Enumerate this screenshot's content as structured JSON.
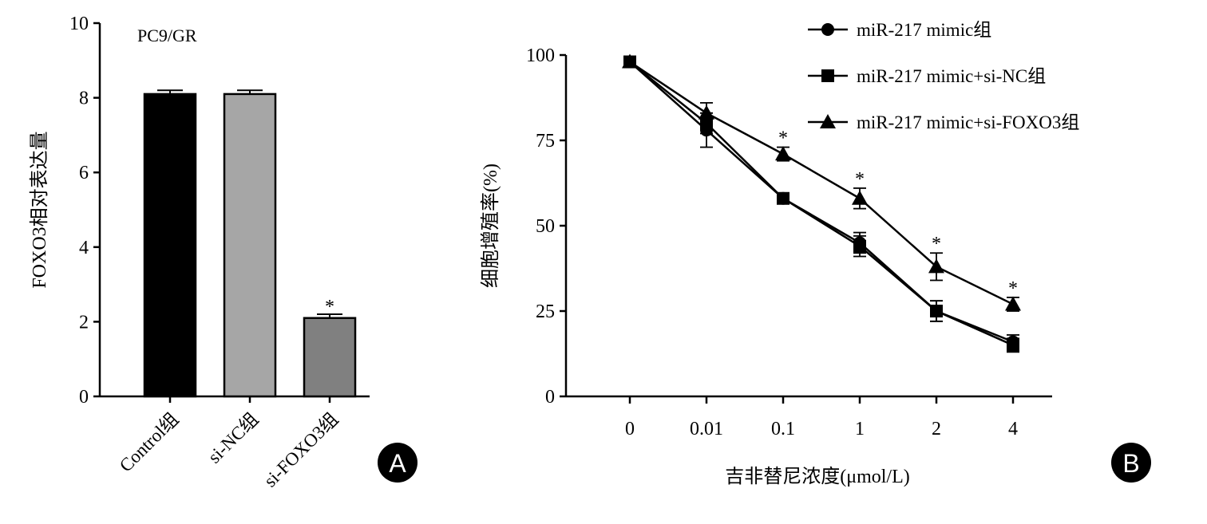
{
  "chart_data": [
    {
      "type": "bar",
      "panel_label": "A",
      "annotation": "PC9/GR",
      "ylabel": "FOXO3相对表达量",
      "ylim": [
        0,
        10
      ],
      "yticks": [
        "0",
        "2",
        "4",
        "6",
        "8",
        "10"
      ],
      "categories": [
        "Control组",
        "si-NC组",
        "si-FOXO3组"
      ],
      "values": [
        8.1,
        8.1,
        2.1
      ],
      "errors": [
        0.1,
        0.1,
        0.1
      ],
      "significance": [
        "",
        "",
        "*"
      ],
      "colors": [
        "#000000",
        "#a6a6a6",
        "#808080"
      ]
    },
    {
      "type": "line",
      "panel_label": "B",
      "xlabel": "吉非替尼浓度(μmol/L)",
      "ylabel": "细胞增殖率(%)",
      "ylim": [
        0,
        100
      ],
      "yticks": [
        "0",
        "25",
        "50",
        "75",
        "100"
      ],
      "x": [
        "0",
        "0.01",
        "0.1",
        "1",
        "2",
        "4"
      ],
      "legend_position": "top-right",
      "series": [
        {
          "name": "miR-217 mimic组",
          "marker": "circle",
          "values": [
            98,
            78,
            58,
            45,
            25,
            16
          ],
          "errors": [
            1.5,
            5,
            1.5,
            3,
            3,
            2
          ]
        },
        {
          "name": "miR-217 mimic+si-NC组",
          "marker": "square",
          "values": [
            98,
            80,
            58,
            44,
            25,
            15
          ],
          "errors": [
            1.5,
            3,
            1.5,
            3,
            3,
            2
          ]
        },
        {
          "name": "miR-217 mimic+si-FOXO3组",
          "marker": "triangle",
          "values": [
            98,
            83,
            71,
            58,
            38,
            27
          ],
          "errors": [
            1.5,
            3,
            2,
            3,
            4,
            2
          ]
        }
      ],
      "significance": [
        "",
        "",
        "*",
        "*",
        "*",
        "*"
      ]
    }
  ]
}
